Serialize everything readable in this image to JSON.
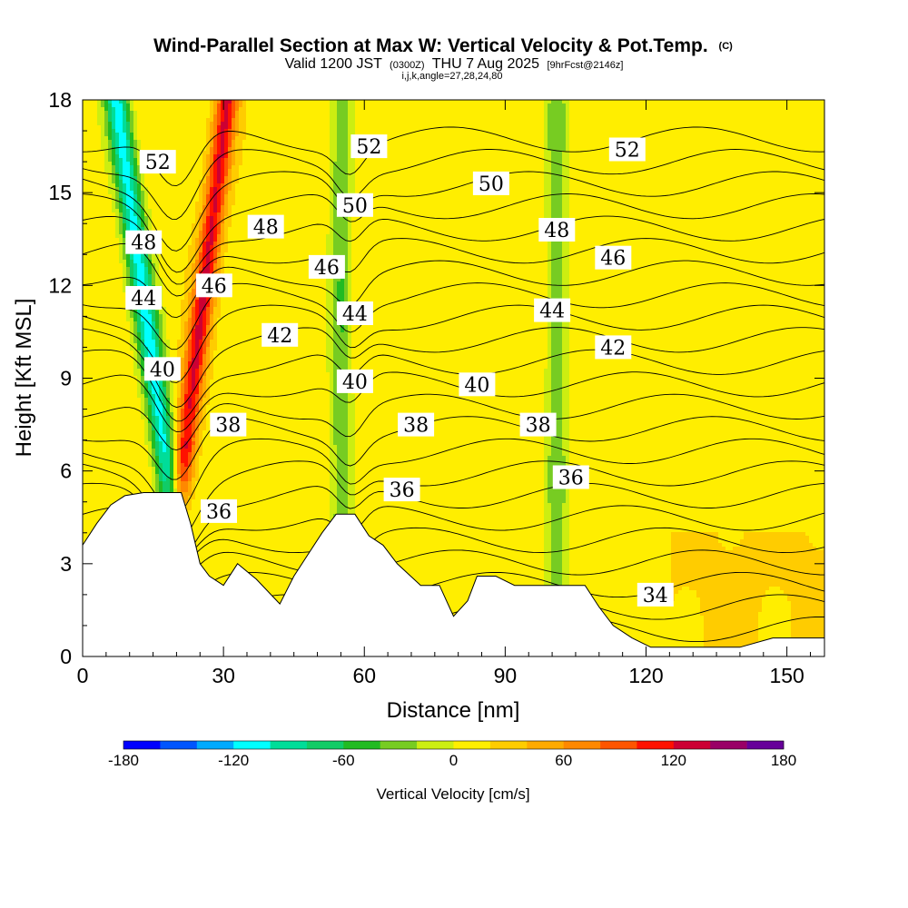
{
  "chart_data": {
    "type": "heatmap",
    "title": "Wind-Parallel Section at Max W: Vertical Velocity & Pot.Temp.",
    "title_mark": "(C)",
    "subtitle_parts": {
      "valid": "Valid 1200 JST",
      "utc": "(0300Z)",
      "date": "THU 7 Aug 2025",
      "fcst": "[9hrFcst@2146z]"
    },
    "indices": "i,j,k,angle=27,28,24,80",
    "xlabel": "Distance [nm]",
    "ylabel": "Height [Kft MSL]",
    "xlim": [
      0,
      158
    ],
    "ylim": [
      0,
      18
    ],
    "xticks": [
      0,
      30,
      60,
      90,
      120,
      150
    ],
    "yticks": [
      0,
      3,
      6,
      9,
      12,
      15,
      18
    ],
    "colorbar": {
      "label": "Vertical Velocity [cm/s]",
      "range": [
        -180,
        180
      ],
      "ticks": [
        -180,
        -120,
        -60,
        0,
        60,
        120,
        180
      ],
      "colors": [
        "#0000ff",
        "#0055ff",
        "#00aaff",
        "#00ffff",
        "#00dd99",
        "#11cc66",
        "#22bb22",
        "#77cc22",
        "#ccee11",
        "#ffee00",
        "#ffcc00",
        "#ffaa00",
        "#ff8800",
        "#ff5500",
        "#ff1100",
        "#cc0033",
        "#990066",
        "#660099"
      ]
    },
    "terrain": [
      [
        0,
        3.6
      ],
      [
        3,
        4.3
      ],
      [
        6,
        4.9
      ],
      [
        9,
        5.2
      ],
      [
        13,
        5.3
      ],
      [
        17,
        5.3
      ],
      [
        21,
        5.3
      ],
      [
        23,
        4.3
      ],
      [
        25,
        3.0
      ],
      [
        27,
        2.6
      ],
      [
        30,
        2.3
      ],
      [
        33,
        3.0
      ],
      [
        37,
        2.5
      ],
      [
        42,
        1.7
      ],
      [
        45,
        2.6
      ],
      [
        48,
        3.3
      ],
      [
        51,
        4.0
      ],
      [
        54,
        4.6
      ],
      [
        58,
        4.6
      ],
      [
        61,
        3.9
      ],
      [
        64,
        3.6
      ],
      [
        67,
        3.0
      ],
      [
        72,
        2.3
      ],
      [
        76,
        2.3
      ],
      [
        79,
        1.3
      ],
      [
        82,
        1.8
      ],
      [
        84,
        2.6
      ],
      [
        88,
        2.6
      ],
      [
        92,
        2.3
      ],
      [
        100,
        2.3
      ],
      [
        107,
        2.3
      ],
      [
        110,
        1.6
      ],
      [
        113,
        1.0
      ],
      [
        117,
        0.6
      ],
      [
        121,
        0.3
      ],
      [
        130,
        0.3
      ],
      [
        140,
        0.3
      ],
      [
        147,
        0.6
      ],
      [
        158,
        0.6
      ]
    ],
    "vertical_velocity_bands": [
      {
        "x": 18,
        "w_cm_s": -120,
        "note": "strong downdraft band, cyan"
      },
      {
        "x": 26,
        "w_cm_s": 110,
        "note": "strong updraft band, red"
      },
      {
        "x": 55,
        "w_cm_s": -50,
        "note": "weak downdraft, green"
      },
      {
        "x": 101,
        "w_cm_s": -45,
        "note": "weak downdraft, green"
      }
    ],
    "isentropes": {
      "variable": "Potential temperature",
      "levels": [
        33,
        34,
        35,
        36,
        37,
        38,
        39,
        40,
        41,
        42,
        43,
        44,
        45,
        46,
        47,
        48,
        49,
        50,
        51,
        52,
        53,
        54,
        55
      ],
      "labeled": [
        {
          "value": "52",
          "x": 16,
          "y": 16.0
        },
        {
          "value": "52",
          "x": 61,
          "y": 16.5
        },
        {
          "value": "52",
          "x": 116,
          "y": 16.4
        },
        {
          "value": "50",
          "x": 87,
          "y": 15.3
        },
        {
          "value": "50",
          "x": 58,
          "y": 14.6
        },
        {
          "value": "48",
          "x": 13,
          "y": 13.4
        },
        {
          "value": "48",
          "x": 39,
          "y": 13.9
        },
        {
          "value": "48",
          "x": 101,
          "y": 13.8
        },
        {
          "value": "46",
          "x": 52,
          "y": 12.6
        },
        {
          "value": "46",
          "x": 113,
          "y": 12.9
        },
        {
          "value": "46",
          "x": 28,
          "y": 12.0
        },
        {
          "value": "44",
          "x": 13,
          "y": 11.6
        },
        {
          "value": "44",
          "x": 58,
          "y": 11.1
        },
        {
          "value": "44",
          "x": 100,
          "y": 11.2
        },
        {
          "value": "42",
          "x": 42,
          "y": 10.4
        },
        {
          "value": "42",
          "x": 113,
          "y": 10.0
        },
        {
          "value": "40",
          "x": 17,
          "y": 9.3
        },
        {
          "value": "40",
          "x": 58,
          "y": 8.9
        },
        {
          "value": "40",
          "x": 84,
          "y": 8.8
        },
        {
          "value": "38",
          "x": 31,
          "y": 7.5
        },
        {
          "value": "38",
          "x": 71,
          "y": 7.5
        },
        {
          "value": "38",
          "x": 97,
          "y": 7.5
        },
        {
          "value": "36",
          "x": 29,
          "y": 4.7
        },
        {
          "value": "36",
          "x": 68,
          "y": 5.4
        },
        {
          "value": "36",
          "x": 104,
          "y": 5.8
        },
        {
          "value": "34",
          "x": 122,
          "y": 2.0
        }
      ]
    }
  }
}
